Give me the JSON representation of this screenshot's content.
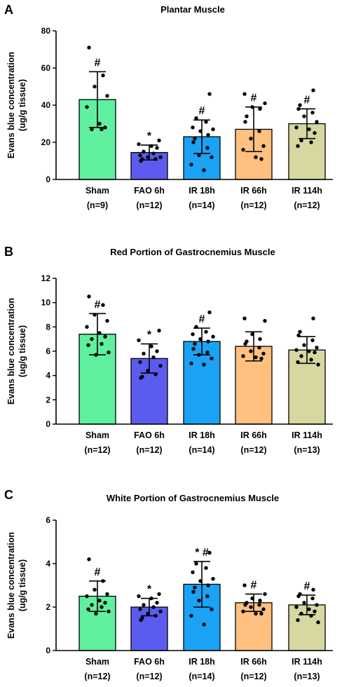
{
  "colors": {
    "sham": "#5ff0a0",
    "fao_6h": "#5b5bef",
    "ir_18h": "#1aa3f5",
    "ir_66h": "#ffc080",
    "ir_114h": "#d6d7a1",
    "axis": "#000000",
    "points": "#000000"
  },
  "chart_data": [
    {
      "panel": "A",
      "type": "bar",
      "title": "Plantar Muscle",
      "ylabel": "Evans blue concentration\n(ug/g tissue)",
      "ylim": [
        0,
        80
      ],
      "yticks": [
        0,
        20,
        40,
        60,
        80
      ],
      "categories": [
        "Sham",
        "FAO 6h",
        "IR 18h",
        "IR 66h",
        "IR 114h"
      ],
      "n_labels": [
        "(n=9)",
        "(n=12)",
        "(n=14)",
        "(n=12)",
        "(n=12)"
      ],
      "values": [
        43,
        14.5,
        23,
        27,
        30
      ],
      "errors": [
        15,
        4,
        9,
        12,
        8
      ],
      "markers": [
        "#",
        "*",
        "#",
        "#",
        "#"
      ],
      "points": [
        [
          71,
          56,
          50,
          45,
          39,
          30,
          28,
          27,
          27
        ],
        [
          21,
          19,
          18,
          17,
          15,
          14,
          13,
          12,
          12,
          11,
          11,
          10
        ],
        [
          46,
          33,
          31,
          28,
          27,
          26,
          24,
          22,
          20,
          17,
          13,
          12,
          8,
          5
        ],
        [
          46,
          41,
          39,
          38,
          34,
          31,
          26,
          22,
          18,
          16,
          12,
          11
        ],
        [
          48,
          40,
          38,
          36,
          34,
          31,
          28,
          27,
          25,
          21,
          20,
          18
        ]
      ]
    },
    {
      "panel": "B",
      "type": "bar",
      "title": "Red Portion of Gastrocnemius Muscle",
      "ylabel": "Evans blue concentration\n(ug/g tissue)",
      "ylim": [
        0,
        12
      ],
      "yticks": [
        0,
        2,
        4,
        6,
        8,
        10,
        12
      ],
      "categories": [
        "Sham",
        "FAO 6h",
        "IR 18h",
        "IR 66h",
        "IR 114h"
      ],
      "n_labels": [
        "(n=12)",
        "(n=12)",
        "(n=14)",
        "(n=12)",
        "(n=13)"
      ],
      "values": [
        7.4,
        5.4,
        6.8,
        6.4,
        6.1
      ],
      "errors": [
        1.7,
        1.2,
        1.1,
        1.2,
        1.1
      ],
      "markers": [
        "#",
        "*",
        "#",
        "",
        ""
      ],
      "points": [
        [
          10.5,
          9.8,
          9.0,
          8.5,
          8.0,
          7.5,
          7.2,
          7.0,
          6.6,
          6.5,
          5.9,
          5.7
        ],
        [
          7.7,
          6.9,
          6.4,
          6.0,
          5.8,
          5.5,
          5.1,
          4.8,
          4.4,
          4.1,
          3.9,
          3.8
        ],
        [
          9.2,
          8.0,
          7.6,
          7.4,
          7.2,
          7.0,
          6.8,
          6.6,
          6.2,
          5.9,
          5.7,
          5.4,
          5.0,
          4.9
        ],
        [
          8.7,
          8.5,
          7.4,
          7.0,
          6.8,
          6.6,
          6.3,
          6.0,
          5.8,
          5.6,
          5.5,
          5.4
        ],
        [
          8.7,
          7.6,
          7.3,
          6.9,
          6.5,
          6.3,
          6.1,
          6.0,
          5.9,
          5.6,
          5.3,
          5.1,
          4.9
        ]
      ]
    },
    {
      "panel": "C",
      "type": "bar",
      "title": "White Portion of Gastrocnemius Muscle",
      "ylabel": "Evans blue concentration\n(ug/g tissue)",
      "ylim": [
        0,
        6
      ],
      "yticks": [
        0,
        2,
        4,
        6
      ],
      "categories": [
        "Sham",
        "FAO 6h",
        "IR 18h",
        "IR 66h",
        "IR 114h"
      ],
      "n_labels": [
        "(n=12)",
        "(n=12)",
        "(n=14)",
        "(n=12)",
        "(n=13)"
      ],
      "values": [
        2.5,
        2.0,
        3.05,
        2.2,
        2.1
      ],
      "errors": [
        0.7,
        0.4,
        1.05,
        0.4,
        0.45
      ],
      "markers": [
        "#",
        "*",
        "* #",
        "#",
        "#"
      ],
      "points": [
        [
          4.2,
          3.2,
          2.8,
          2.6,
          2.5,
          2.3,
          2.2,
          2.1,
          2.0,
          1.9,
          1.8,
          1.7
        ],
        [
          2.6,
          2.5,
          2.4,
          2.2,
          2.1,
          2.0,
          1.9,
          1.8,
          1.7,
          1.6,
          1.5,
          1.4
        ],
        [
          4.5,
          4.0,
          3.8,
          3.6,
          3.3,
          3.2,
          3.0,
          2.9,
          2.7,
          2.5,
          2.3,
          1.9,
          1.6,
          1.2
        ],
        [
          3.0,
          2.6,
          2.4,
          2.3,
          2.2,
          2.1,
          2.1,
          2.0,
          1.9,
          1.8,
          1.7,
          1.7
        ],
        [
          2.8,
          2.6,
          2.5,
          2.4,
          2.2,
          2.1,
          2.0,
          1.9,
          1.8,
          1.7,
          1.6,
          1.4,
          1.3
        ]
      ]
    }
  ]
}
